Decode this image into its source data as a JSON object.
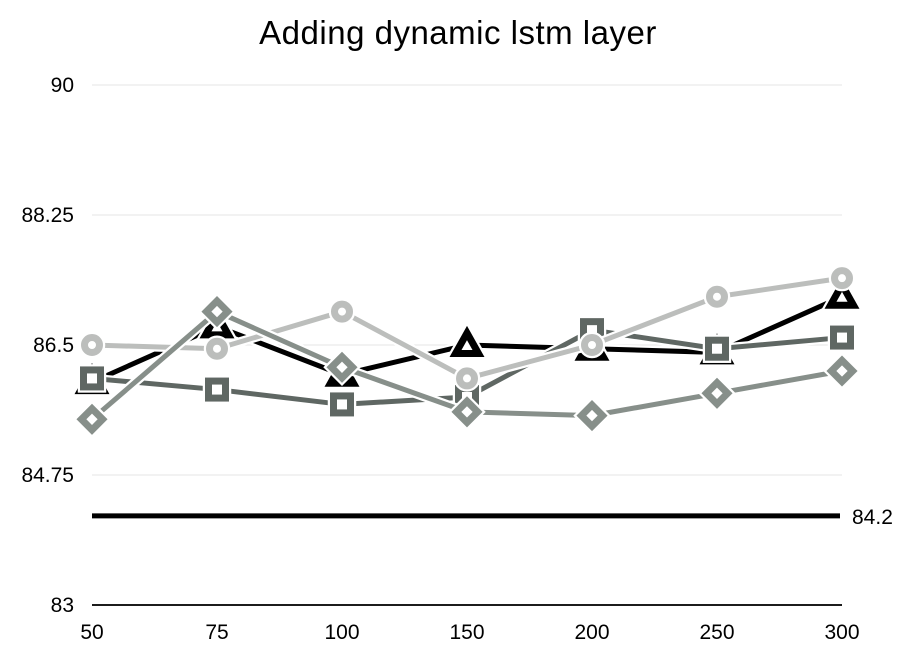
{
  "title": "Adding dynamic lstm layer",
  "chart_data": {
    "type": "line",
    "title": "Adding dynamic lstm layer",
    "xlabel": "",
    "ylabel": "",
    "ylim": [
      83,
      90
    ],
    "grid": true,
    "legend_position": "none",
    "x_categories": [
      "50",
      "75",
      "100",
      "150",
      "200",
      "250",
      "300"
    ],
    "y_tick_values": [
      90,
      88.25,
      86.5,
      84.75,
      83
    ],
    "y_tick_labels": [
      "90",
      "88.25",
      "86.5",
      "84.75",
      "83"
    ],
    "series": [
      {
        "name": "triangle-series",
        "marker": "triangle",
        "color": "#000000",
        "values": [
          86.0,
          86.75,
          86.1,
          86.5,
          86.45,
          86.4,
          87.15
        ]
      },
      {
        "name": "square-series",
        "marker": "square",
        "color": "#5f6763",
        "values": [
          86.05,
          85.9,
          85.7,
          85.8,
          86.7,
          86.45,
          86.6
        ]
      },
      {
        "name": "circle-series",
        "marker": "circle",
        "color": "#bcbebc",
        "values": [
          86.5,
          86.45,
          86.95,
          86.05,
          86.5,
          87.15,
          87.4
        ]
      },
      {
        "name": "diamond-series",
        "marker": "diamond",
        "color": "#878f8a",
        "values": [
          85.5,
          86.95,
          86.2,
          85.6,
          85.55,
          85.85,
          86.15
        ]
      }
    ],
    "baseline": {
      "value": 84.2,
      "label": "84.2",
      "color": "#000000"
    },
    "colors": {
      "gridline": "#e4e4e4",
      "axis": "#1c1c1c",
      "text": "#000000",
      "background": "#ffffff"
    }
  }
}
